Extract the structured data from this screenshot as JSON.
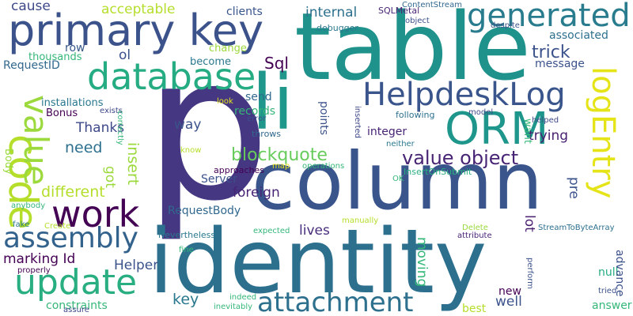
{
  "words": [
    {
      "text": "p",
      "color": "#453781"
    },
    {
      "text": "table",
      "color": "#20928c"
    },
    {
      "text": "column",
      "color": "#39558c"
    },
    {
      "text": "identity",
      "color": "#2d708e"
    },
    {
      "text": "li",
      "color": "#1f978b"
    },
    {
      "text": "primary key",
      "color": "#3b528b"
    },
    {
      "text": "database",
      "color": "#25ac82"
    },
    {
      "text": "work",
      "color": "#440154"
    },
    {
      "text": "code",
      "color": "#b5de2b"
    },
    {
      "text": "value",
      "color": "#9bd93c"
    },
    {
      "text": "assembly",
      "color": "#33638d"
    },
    {
      "text": "update",
      "color": "#28ae80"
    },
    {
      "text": "attachment",
      "color": "#2d708e"
    },
    {
      "text": "ORM",
      "color": "#1f968b"
    },
    {
      "text": "HelpdeskLog",
      "color": "#39558c"
    },
    {
      "text": "generated",
      "color": "#287c8e"
    },
    {
      "text": "logEntry",
      "color": "#e5e419"
    },
    {
      "text": "value object",
      "color": "#482475"
    },
    {
      "text": "blockquote",
      "color": "#67cc5c"
    },
    {
      "text": "trick",
      "color": "#3b528b"
    },
    {
      "text": "Sql",
      "color": "#440154"
    },
    {
      "text": "cause",
      "color": "#3e4989"
    },
    {
      "text": "acceptable",
      "color": "#b5de2b"
    },
    {
      "text": "clients",
      "color": "#39558c"
    },
    {
      "text": "internal",
      "color": "#2d708e"
    },
    {
      "text": "associated",
      "color": "#2d708e"
    },
    {
      "text": "row",
      "color": "#38588c"
    },
    {
      "text": "thousands",
      "color": "#35b779"
    },
    {
      "text": "ol",
      "color": "#3b528b"
    },
    {
      "text": "RequestID",
      "color": "#31688e"
    },
    {
      "text": "installations",
      "color": "#2a788e"
    },
    {
      "text": "Bonus",
      "color": "#440154"
    },
    {
      "text": "Thanks",
      "color": "#3e4989"
    },
    {
      "text": "need",
      "color": "#2d708e"
    },
    {
      "text": "different",
      "color": "#b5de2b"
    },
    {
      "text": "got",
      "color": "#9bd93c"
    },
    {
      "text": "insert",
      "color": "#9bd93c"
    },
    {
      "text": "way",
      "color": "#3b528b"
    },
    {
      "text": "Server",
      "color": "#3b528b"
    },
    {
      "text": "foreign",
      "color": "#482475"
    },
    {
      "text": "RequestBody",
      "color": "#31688e"
    },
    {
      "text": "marking Id",
      "color": "#440154"
    },
    {
      "text": "Helper",
      "color": "#3b528b"
    },
    {
      "text": "constraints",
      "color": "#35b779"
    },
    {
      "text": "key",
      "color": "#2a788e"
    },
    {
      "text": "lives",
      "color": "#472d7b"
    },
    {
      "text": "moving",
      "color": "#35b779"
    },
    {
      "text": "send",
      "color": "#31688e"
    },
    {
      "text": "records",
      "color": "#35b779"
    },
    {
      "text": "points",
      "color": "#3b528b"
    },
    {
      "text": "integer",
      "color": "#482475"
    },
    {
      "text": "trying",
      "color": "#481f70"
    },
    {
      "text": "message",
      "color": "#3b528b"
    },
    {
      "text": "pre",
      "color": "#3b528b"
    },
    {
      "text": "lot",
      "color": "#481f70"
    },
    {
      "text": "null",
      "color": "#25ac82"
    },
    {
      "text": "new",
      "color": "#440154"
    },
    {
      "text": "well",
      "color": "#3b528b"
    },
    {
      "text": "best",
      "color": "#b5de2b"
    },
    {
      "text": "answer",
      "color": "#35b779"
    },
    {
      "text": "advance",
      "color": "#3b528b"
    },
    {
      "text": "change",
      "color": "#9bd93c"
    },
    {
      "text": "become",
      "color": "#2a788e"
    },
    {
      "text": "want",
      "color": "#35b779"
    },
    {
      "text": "SQLMetal",
      "color": "#482475"
    },
    {
      "text": "ContentStream",
      "color": "#31688e"
    },
    {
      "text": "object",
      "color": "#3b528b"
    },
    {
      "text": "despite",
      "color": "#3b528b"
    },
    {
      "text": "debugger",
      "color": "#2a788e"
    },
    {
      "text": "assure",
      "color": "#3e4989"
    },
    {
      "text": "exists",
      "color": "#3e4989"
    },
    {
      "text": "Body",
      "color": "#9bd93c"
    },
    {
      "text": "correctly",
      "color": "#35b779"
    },
    {
      "text": "look",
      "color": "#e5e419"
    },
    {
      "text": "error",
      "color": "#3b528b"
    },
    {
      "text": "inserted",
      "color": "#3e4989"
    },
    {
      "text": "throws",
      "color": "#31688e"
    },
    {
      "text": "following",
      "color": "#2d708e"
    },
    {
      "text": "model",
      "color": "#3e4989"
    },
    {
      "text": "helped",
      "color": "#3e4989"
    },
    {
      "text": "neither",
      "color": "#2a788e"
    },
    {
      "text": "InsertOnSubmit",
      "color": "#29af7f"
    },
    {
      "text": "know",
      "color": "#b5de2b"
    },
    {
      "text": "approaches",
      "color": "#440154"
    },
    {
      "text": "map",
      "color": "#e5e419"
    },
    {
      "text": "operations",
      "color": "#35b779"
    },
    {
      "text": "OK",
      "color": "#35b779"
    },
    {
      "text": "anybody",
      "color": "#35b779"
    },
    {
      "text": "fake",
      "color": "#2a788e"
    },
    {
      "text": "Create",
      "color": "#b5de2b"
    },
    {
      "text": "manually",
      "color": "#b5de2b"
    },
    {
      "text": "Delete",
      "color": "#9bd93c"
    },
    {
      "text": "StreamToByteArray",
      "color": "#2d708e"
    },
    {
      "text": "expected",
      "color": "#35b779"
    },
    {
      "text": "attribute",
      "color": "#482475"
    },
    {
      "text": "Nevertheless",
      "color": "#2a788e"
    },
    {
      "text": "fine",
      "color": "#35b779"
    },
    {
      "text": "perform",
      "color": "#3b528b"
    },
    {
      "text": "tried",
      "color": "#3b528b"
    },
    {
      "text": "properly",
      "color": "#440154"
    },
    {
      "text": "indeed",
      "color": "#35b779"
    },
    {
      "text": "inevitably",
      "color": "#35b779"
    }
  ]
}
